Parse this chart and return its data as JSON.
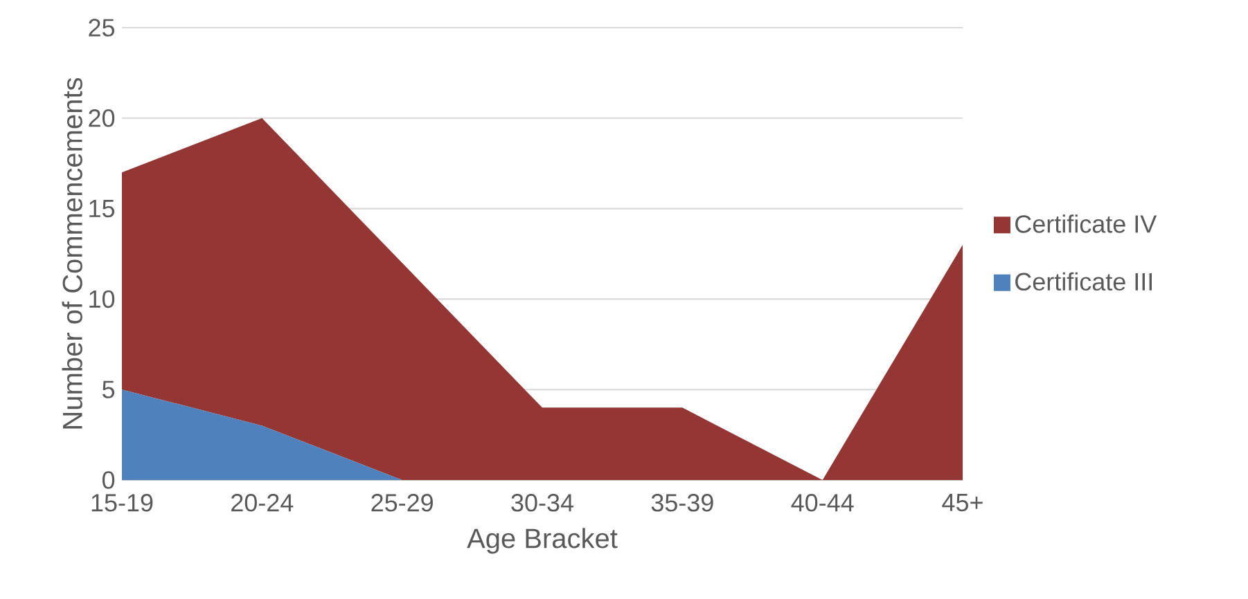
{
  "chart_data": {
    "type": "area",
    "stacked": true,
    "xlabel": "Age Bracket",
    "ylabel": "Number of Commencements",
    "categories": [
      "15-19",
      "20-24",
      "25-29",
      "30-34",
      "35-39",
      "40-44",
      "45+"
    ],
    "series": [
      {
        "name": "Certificate III",
        "color": "#4f81bd",
        "values": [
          5,
          3,
          0,
          0,
          0,
          0,
          0
        ]
      },
      {
        "name": "Certificate IV",
        "color": "#943634",
        "values": [
          12,
          17,
          12,
          4,
          4,
          0,
          13
        ]
      }
    ],
    "ylim": [
      0,
      25
    ],
    "yticks": [
      0,
      5,
      10,
      15,
      20,
      25
    ],
    "grid": "y",
    "legend": "right"
  }
}
